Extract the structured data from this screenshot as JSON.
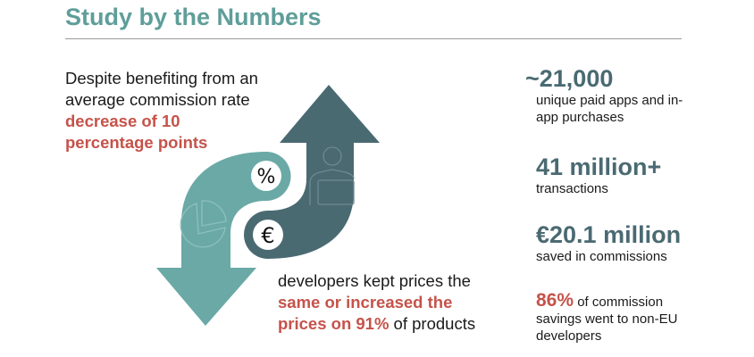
{
  "title": "Study by the Numbers",
  "left_text": {
    "plain": "Despite benefiting from an average commission rate ",
    "highlight": "decrease of 10 percentage points"
  },
  "bottom_text": {
    "plain1": "developers kept prices the ",
    "highlight": "same or increased the prices on 91%",
    "plain2": " of products"
  },
  "stats": [
    {
      "value": "~21,000",
      "label": "unique paid apps and in-app purchases"
    },
    {
      "value": "41 million+",
      "label": "transactions"
    },
    {
      "value": "€20.1 million",
      "label": "saved in commissions"
    },
    {
      "value": "86%",
      "label": " of commission savings went to non-EU developers"
    }
  ],
  "icons": {
    "percent": "%",
    "euro": "€"
  },
  "colors": {
    "teal": "#6aa9a6",
    "slate": "#4a6a72",
    "red": "#c5534a",
    "title": "#5f9e9a"
  }
}
